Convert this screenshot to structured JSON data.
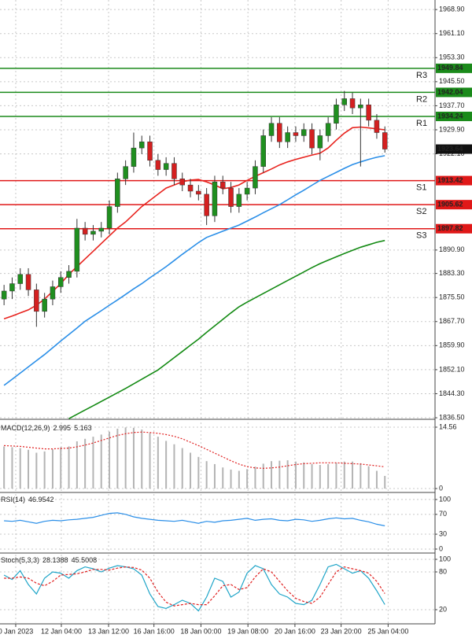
{
  "chart_data": [
    {
      "type": "candlestick",
      "xlim": [
        -0.5,
        53.19
      ],
      "xticks": [
        {
          "value": 1.44,
          "label": "0 Jan 2023"
        },
        {
          "value": 7.07,
          "label": "12 Jan 04:00"
        },
        {
          "value": 12.9,
          "label": "13 Jan 12:00"
        },
        {
          "value": 18.5,
          "label": "16 Jan 16:00"
        },
        {
          "value": 24.3,
          "label": "18 Jan 00:00"
        },
        {
          "value": 30.1,
          "label": "19 Jan 08:00"
        },
        {
          "value": 35.9,
          "label": "20 Jan 16:00"
        },
        {
          "value": 41.6,
          "label": "23 Jan 20:00"
        },
        {
          "value": 47.4,
          "label": "25 Jan 04:00"
        }
      ],
      "ylim": [
        1836,
        1972
      ],
      "yticks": [
        {
          "value": 1968.9,
          "label": "1968.90"
        },
        {
          "value": 1961.1,
          "label": "1961.10"
        },
        {
          "value": 1953.3,
          "label": "1953.30"
        },
        {
          "value": 1945.5,
          "label": "1945.50"
        },
        {
          "value": 1937.7,
          "label": "1937.70"
        },
        {
          "value": 1929.9,
          "label": "1929.90"
        },
        {
          "value": 1922.1,
          "label": "1922.10"
        },
        {
          "value": 1890.9,
          "label": "1890.90"
        },
        {
          "value": 1883.3,
          "label": "1883.30"
        },
        {
          "value": 1875.5,
          "label": "1875.50"
        },
        {
          "value": 1867.7,
          "label": "1867.70"
        },
        {
          "value": 1859.9,
          "label": "1859.90"
        },
        {
          "value": 1852.1,
          "label": "1852.10"
        },
        {
          "value": 1844.3,
          "label": "1844.30"
        },
        {
          "value": 1836.5,
          "label": "1836.50"
        }
      ],
      "grid": true,
      "up_color": "#1f8f1f",
      "down_color": "#d42020",
      "open": [
        1875,
        1877.6,
        1880,
        1883,
        1878,
        1871,
        1875,
        1879,
        1882,
        1884,
        1898,
        1896,
        1897,
        1898,
        1905,
        1914,
        1918,
        1924,
        1926,
        1920,
        1917,
        1919,
        1914,
        1912,
        1910,
        1909,
        1902,
        1913,
        1911,
        1905,
        1909,
        1911,
        1918,
        1928,
        1932,
        1926,
        1929,
        1928,
        1930,
        1924,
        1928,
        1932,
        1938,
        1940,
        1937,
        1938,
        1933,
        1929
      ],
      "high": [
        1879.6,
        1882,
        1885,
        1885,
        1880,
        1877,
        1881,
        1884,
        1886,
        1901,
        1900,
        1899,
        1900,
        1907,
        1916,
        1920,
        1929,
        1928,
        1928,
        1922,
        1921,
        1921,
        1916,
        1914,
        1912,
        1911,
        1915,
        1915,
        1913,
        1911,
        1913,
        1920,
        1930,
        1934,
        1934,
        1931,
        1931,
        1932,
        1932,
        1930,
        1934,
        1940,
        1942.5,
        1942,
        1940,
        1940,
        1935,
        1931
      ],
      "low": [
        1873,
        1875,
        1878,
        1876,
        1866,
        1869,
        1873,
        1877,
        1880,
        1882,
        1894,
        1894,
        1895,
        1896,
        1903,
        1912,
        1916,
        1922,
        1918,
        1915,
        1915,
        1912,
        1910,
        1908,
        1907,
        1899,
        1900,
        1909,
        1903,
        1903,
        1907,
        1909,
        1916,
        1926,
        1924,
        1924,
        1926,
        1926,
        1922,
        1920,
        1926,
        1930,
        1936,
        1935,
        1918,
        1931,
        1927,
        1922.5
      ],
      "close": [
        1877.6,
        1880,
        1883,
        1878,
        1871,
        1875,
        1879,
        1882,
        1884,
        1898,
        1896,
        1897,
        1898,
        1905,
        1914,
        1918,
        1924,
        1926,
        1920,
        1917,
        1919,
        1914,
        1912,
        1910,
        1909,
        1902,
        1913,
        1911,
        1905,
        1909,
        1911,
        1918,
        1928,
        1932,
        1926,
        1929,
        1928,
        1930,
        1924,
        1928,
        1932,
        1938,
        1940,
        1937,
        1938,
        1933,
        1929,
        1923.64
      ],
      "lines": [
        {
          "color": "#e8231e",
          "values": [
            1868.6,
            1869.5,
            1870.5,
            1871.5,
            1873,
            1875,
            1877.5,
            1880,
            1883,
            1885.5,
            1888,
            1890.5,
            1893,
            1895.5,
            1898,
            1900,
            1902.5,
            1905,
            1907,
            1909,
            1911,
            1912,
            1913,
            1913.6,
            1913.8,
            1913,
            1912,
            1910.8,
            1911.2,
            1912,
            1913.5,
            1914.8,
            1916,
            1917.2,
            1918.5,
            1919.5,
            1920.3,
            1921,
            1921.7,
            1922.3,
            1924,
            1926.5,
            1928.8,
            1930.6,
            1930.8,
            1930.5,
            1930.2,
            1929.9
          ]
        },
        {
          "color": "#2b8fe8",
          "values": [
            1847,
            1849,
            1851,
            1853,
            1855,
            1857,
            1859.2,
            1861.4,
            1863.5,
            1865.6,
            1867.8,
            1869.5,
            1871.2,
            1873,
            1874.7,
            1876.5,
            1878.3,
            1880,
            1881.9,
            1883.7,
            1885.5,
            1887.5,
            1889.5,
            1891.4,
            1893.3,
            1895,
            1896,
            1897,
            1898,
            1899,
            1900.3,
            1901.6,
            1903,
            1904.3,
            1905.6,
            1907.2,
            1908.8,
            1910.3,
            1911.9,
            1913.5,
            1914.8,
            1916.1,
            1917.4,
            1918.6,
            1919.5,
            1920.3,
            1921,
            1921.5
          ]
        },
        {
          "color": "#138a13",
          "values": [
            null,
            null,
            null,
            null,
            null,
            null,
            null,
            null,
            1836.2,
            1837.6,
            1839,
            1840.4,
            1841.8,
            1843.2,
            1844.6,
            1846,
            1847.5,
            1849,
            1850.5,
            1852,
            1854,
            1856,
            1858,
            1860,
            1862,
            1864.2,
            1866.3,
            1868.4,
            1870.5,
            1872.5,
            1874,
            1875.4,
            1876.8,
            1878.2,
            1879.6,
            1881,
            1882.4,
            1883.8,
            1885.2,
            1886.5,
            1887.6,
            1888.7,
            1889.8,
            1890.8,
            1891.8,
            1892.6,
            1893.4,
            1894
          ]
        }
      ],
      "levels": [
        {
          "name": "R3",
          "value": 1949.84,
          "color": "#1a8a1a"
        },
        {
          "name": "R2",
          "value": 1942.04,
          "color": "#1a8a1a"
        },
        {
          "name": "R1",
          "value": 1934.24,
          "color": "#1a8a1a"
        },
        {
          "name": "S1",
          "value": 1913.42,
          "color": "#e01818"
        },
        {
          "name": "S2",
          "value": 1905.62,
          "color": "#e01818"
        },
        {
          "name": "S3",
          "value": 1897.82,
          "color": "#e01818"
        }
      ],
      "last_price": 1923.64
    },
    {
      "type": "indicator",
      "title": "MACD(12,26,9)",
      "ylim": [
        -0.93,
        15.68
      ],
      "yticks": [
        14.56,
        0
      ],
      "series": [
        {
          "type": "bar",
          "color": "#b4b4b4",
          "values": [
            10,
            9.8,
            9.6,
            9.2,
            8.5,
            8.8,
            9.3,
            9.8,
            10,
            11.2,
            11.8,
            12.3,
            12.8,
            13.5,
            14.2,
            14.5,
            14.4,
            14,
            13.2,
            12.3,
            11.3,
            10.5,
            9.6,
            8.5,
            7.5,
            6.5,
            5.8,
            5,
            4.5,
            4.2,
            4.6,
            5.2,
            5.9,
            6.5,
            6.6,
            6.7,
            6.4,
            6.2,
            5.8,
            5.6,
            5.8,
            6.1,
            6.4,
            6.4,
            6,
            5.3,
            4.2,
            2.995
          ]
        },
        {
          "type": "line",
          "color": "#e02020",
          "dash": "2,2",
          "values": [
            10.2,
            10.1,
            10,
            9.8,
            9.6,
            9.4,
            9.4,
            9.5,
            9.6,
            9.9,
            10.3,
            10.8,
            11.4,
            12,
            12.6,
            13,
            13.3,
            13.4,
            13.3,
            13.1,
            12.8,
            12.4,
            11.8,
            11,
            10.2,
            9.3,
            8.4,
            7.5,
            6.6,
            5.8,
            5.2,
            4.9,
            4.8,
            4.9,
            5.1,
            5.4,
            5.7,
            5.9,
            6,
            6.1,
            6.1,
            6.1,
            6,
            5.9,
            5.8,
            5.6,
            5.4,
            5.163
          ]
        }
      ]
    },
    {
      "type": "indicator",
      "title": "RSI(14)",
      "ylim": [
        -8,
        111
      ],
      "yticks": [
        100,
        70,
        30,
        0
      ],
      "series": [
        {
          "type": "line",
          "color": "#2b8fe8",
          "values": [
            57,
            56,
            58,
            55,
            52,
            56,
            58,
            57,
            59,
            60,
            62,
            64,
            68,
            72,
            73,
            70,
            65,
            62,
            60,
            58,
            57,
            56,
            58,
            55,
            52,
            56,
            54,
            57,
            58,
            60,
            62,
            58,
            60,
            61,
            58,
            57,
            60,
            59,
            56,
            58,
            61,
            63,
            61,
            62,
            58,
            55,
            50,
            46.9542
          ]
        }
      ]
    },
    {
      "type": "indicator",
      "title": "Stoch(5,3,3)",
      "ylim": [
        -2.5,
        107.5
      ],
      "yticks": [
        100,
        80,
        20
      ],
      "series": [
        {
          "type": "line",
          "color": "#1fa5c8",
          "values": [
            75,
            68,
            82,
            60,
            45,
            70,
            80,
            78,
            70,
            82,
            88,
            85,
            80,
            86,
            90,
            88,
            85,
            75,
            45,
            25,
            22,
            28,
            35,
            30,
            18,
            40,
            70,
            65,
            40,
            48,
            78,
            90,
            85,
            60,
            45,
            40,
            30,
            28,
            35,
            60,
            88,
            92,
            85,
            78,
            82,
            70,
            50,
            28.1388
          ]
        },
        {
          "type": "line",
          "color": "#e02020",
          "dash": "3,2",
          "values": [
            70,
            70,
            72,
            70,
            62,
            58,
            65,
            75,
            76,
            77,
            80,
            84,
            84,
            83,
            86,
            88,
            87,
            83,
            70,
            48,
            32,
            26,
            28,
            30,
            28,
            28,
            42,
            58,
            60,
            52,
            55,
            72,
            85,
            80,
            65,
            50,
            38,
            33,
            30,
            40,
            60,
            80,
            88,
            85,
            82,
            78,
            65,
            45.5008
          ]
        }
      ]
    }
  ]
}
